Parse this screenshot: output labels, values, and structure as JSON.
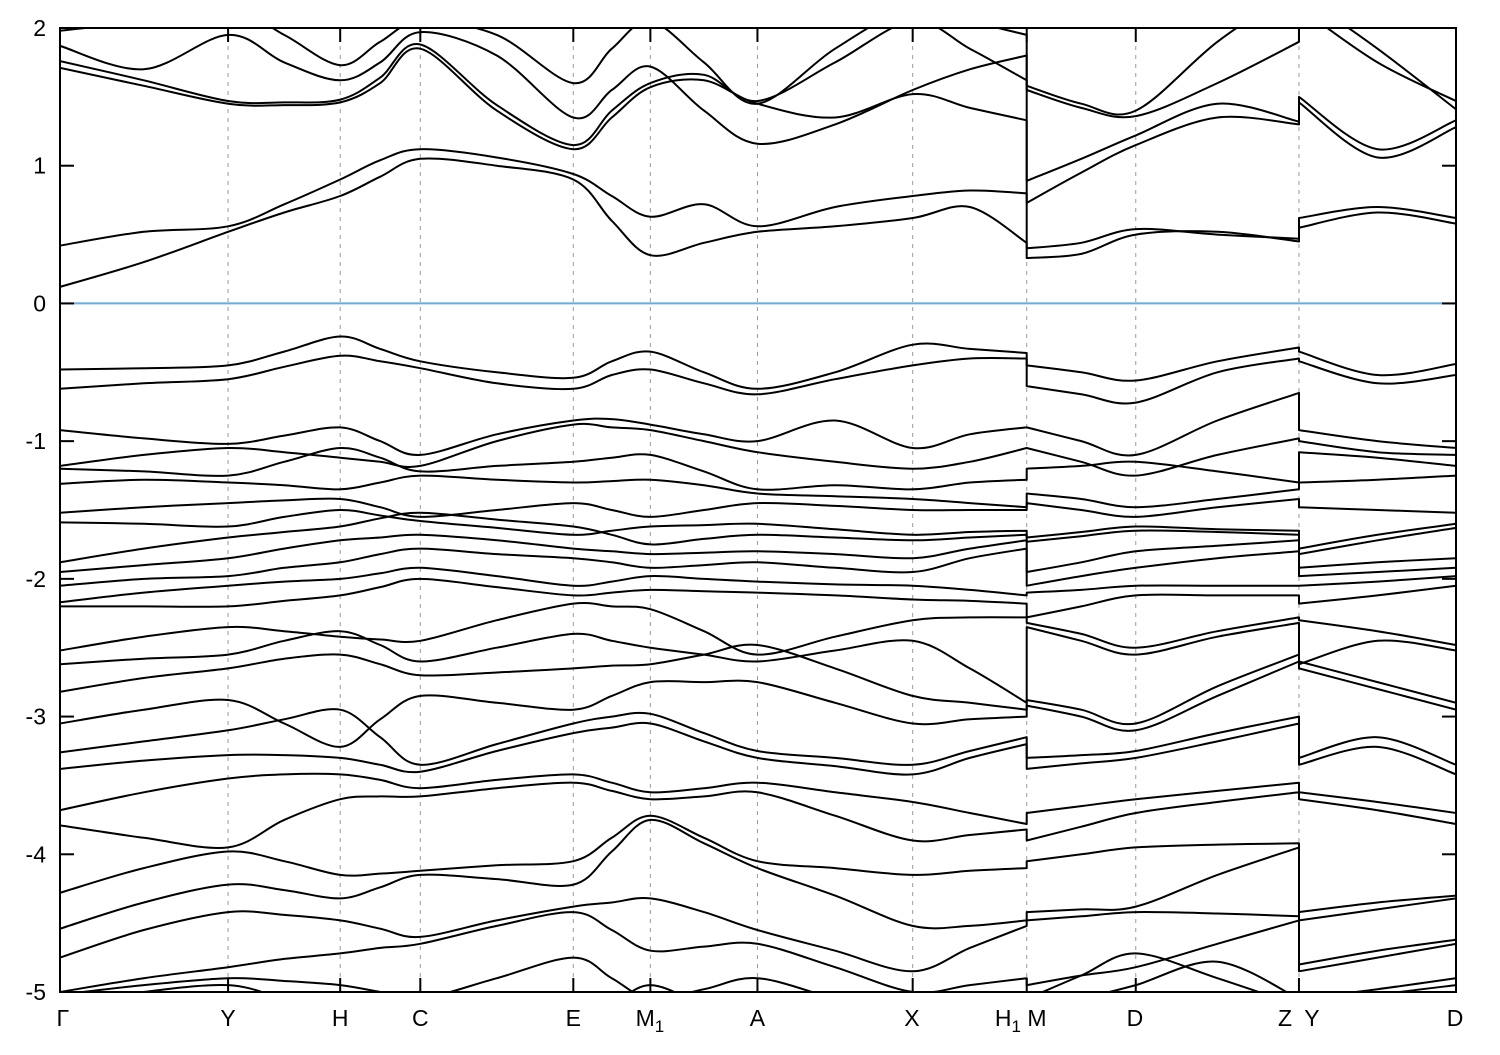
{
  "figure": {
    "kind": "electronic band structure plot",
    "background": "#ffffff"
  },
  "chart_data": {
    "type": "line",
    "title": "",
    "xlabel": "",
    "ylabel": "",
    "ylim": [
      -5,
      2
    ],
    "yticks": [
      2,
      1,
      0,
      -1,
      -2,
      -3,
      -4,
      -5
    ],
    "grid": "vertical-dashed",
    "legend": "none",
    "fermi_level": 0,
    "colors": {
      "band": "#000000",
      "fermi": "#64aede",
      "gridline": "#9a9a9a",
      "frame": "#000000"
    },
    "kpoint_labels": [
      {
        "main": "Γ",
        "sub": "",
        "f": 0.002
      },
      {
        "main": "Y",
        "sub": "",
        "f": 0.1204
      },
      {
        "main": "H",
        "sub": "",
        "f": 0.2007
      },
      {
        "main": "C",
        "sub": "",
        "f": 0.2581
      },
      {
        "main": "E",
        "sub": "",
        "f": 0.3677
      },
      {
        "main": "M",
        "sub": "1",
        "f": 0.4226
      },
      {
        "main": "A",
        "sub": "",
        "f": 0.4996
      },
      {
        "main": "X",
        "sub": "",
        "f": 0.6103
      },
      {
        "main": "H",
        "sub": "1",
        "f": 0.679
      },
      {
        "main": "M",
        "sub": "",
        "f": 0.6998
      },
      {
        "main": "D",
        "sub": "",
        "f": 0.77
      },
      {
        "main": "Z",
        "sub": "",
        "f": 0.8775
      },
      {
        "main": "Y",
        "sub": "",
        "f": 0.8968
      },
      {
        "main": "D",
        "sub": "",
        "f": 0.9993
      }
    ],
    "gridlines_x": [
      0.1204,
      0.2007,
      0.2581,
      0.3677,
      0.4229,
      0.4996,
      0.6108,
      0.6925,
      0.7706,
      0.8875
    ],
    "panel_boundaries": [
      0.6925,
      0.8875
    ],
    "stations_x": [
      0.0,
      0.06,
      0.1204,
      0.1606,
      0.2007,
      0.2294,
      0.2581,
      0.3129,
      0.3677,
      0.3953,
      0.4229,
      0.4613,
      0.4996,
      0.5552,
      0.6108,
      0.6517,
      0.6925,
      0.6925,
      0.7316,
      0.7706,
      0.8291,
      0.8875,
      0.8875,
      0.9438,
      1.0
    ],
    "segments": [
      [
        0,
        16
      ],
      [
        17,
        21
      ],
      [
        22,
        24
      ]
    ],
    "bands": [
      [
        0.12,
        0.3,
        0.52,
        0.66,
        0.78,
        0.92,
        1.05,
        1.0,
        0.9,
        0.6,
        0.35,
        0.44,
        0.52,
        0.56,
        0.62,
        0.7,
        0.44,
        0.33,
        0.36,
        0.5,
        0.52,
        0.45,
        0.55,
        0.66,
        0.58
      ],
      [
        0.42,
        0.52,
        0.56,
        0.72,
        0.9,
        1.04,
        1.12,
        1.06,
        0.94,
        0.78,
        0.63,
        0.72,
        0.56,
        0.7,
        0.78,
        0.82,
        0.8,
        0.4,
        0.44,
        0.54,
        0.5,
        0.47,
        0.62,
        0.7,
        0.62
      ],
      [
        1.71,
        1.58,
        1.45,
        1.44,
        1.46,
        1.6,
        1.85,
        1.4,
        1.12,
        1.35,
        1.57,
        1.62,
        1.45,
        1.35,
        1.52,
        1.42,
        1.33,
        0.73,
        0.95,
        1.15,
        1.35,
        1.3,
        1.46,
        1.06,
        1.28
      ],
      [
        1.76,
        1.62,
        1.47,
        1.46,
        1.48,
        1.64,
        1.88,
        1.44,
        1.15,
        1.4,
        1.6,
        1.66,
        1.47,
        1.75,
        2.05,
        1.85,
        1.62,
        0.89,
        1.05,
        1.22,
        1.45,
        1.32,
        1.5,
        1.12,
        1.33
      ],
      [
        1.87,
        1.7,
        1.95,
        1.75,
        1.62,
        1.75,
        1.97,
        1.8,
        1.35,
        1.55,
        1.72,
        1.4,
        1.16,
        1.3,
        1.55,
        1.7,
        1.8,
        1.55,
        1.42,
        1.36,
        1.6,
        1.9,
        2.15,
        1.75,
        1.47
      ],
      [
        1.98,
        2.05,
        2.15,
        1.95,
        1.73,
        1.9,
        2.05,
        1.95,
        1.6,
        1.85,
        2.05,
        1.75,
        1.45,
        1.85,
        2.15,
        2.05,
        1.95,
        1.58,
        1.45,
        1.4,
        1.9,
        2.3,
        2.25,
        1.85,
        1.41
      ],
      [
        -0.48,
        -0.47,
        -0.45,
        -0.35,
        -0.24,
        -0.33,
        -0.42,
        -0.5,
        -0.54,
        -0.42,
        -0.35,
        -0.5,
        -0.62,
        -0.5,
        -0.3,
        -0.33,
        -0.36,
        -0.45,
        -0.5,
        -0.56,
        -0.42,
        -0.32,
        -0.35,
        -0.52,
        -0.44
      ],
      [
        -0.62,
        -0.58,
        -0.55,
        -0.46,
        -0.38,
        -0.42,
        -0.47,
        -0.58,
        -0.62,
        -0.52,
        -0.48,
        -0.58,
        -0.66,
        -0.55,
        -0.45,
        -0.4,
        -0.4,
        -0.6,
        -0.66,
        -0.72,
        -0.5,
        -0.4,
        -0.42,
        -0.58,
        -0.52
      ],
      [
        -0.92,
        -0.98,
        -1.02,
        -0.96,
        -0.9,
        -1.0,
        -1.1,
        -0.95,
        -0.85,
        -0.84,
        -0.88,
        -0.95,
        -1.0,
        -0.85,
        -1.05,
        -0.95,
        -0.9,
        -0.9,
        -1.0,
        -1.1,
        -0.85,
        -0.65,
        -0.92,
        -1.0,
        -1.05
      ],
      [
        -1.18,
        -1.1,
        -1.05,
        -1.08,
        -1.12,
        -1.15,
        -1.18,
        -1.0,
        -0.88,
        -0.9,
        -0.92,
        -1.0,
        -1.08,
        -1.15,
        -1.2,
        -1.15,
        -1.05,
        -1.05,
        -1.15,
        -1.25,
        -1.1,
        -0.98,
        -1.0,
        -1.08,
        -1.1
      ],
      [
        -1.2,
        -1.22,
        -1.25,
        -1.15,
        -1.05,
        -1.12,
        -1.22,
        -1.18,
        -1.15,
        -1.12,
        -1.1,
        -1.22,
        -1.35,
        -1.32,
        -1.35,
        -1.3,
        -1.28,
        -1.2,
        -1.18,
        -1.15,
        -1.22,
        -1.3,
        -1.08,
        -1.12,
        -1.18
      ],
      [
        -1.31,
        -1.28,
        -1.3,
        -1.32,
        -1.35,
        -1.3,
        -1.25,
        -1.28,
        -1.3,
        -1.29,
        -1.28,
        -1.32,
        -1.38,
        -1.4,
        -1.42,
        -1.45,
        -1.48,
        -1.38,
        -1.42,
        -1.48,
        -1.42,
        -1.35,
        -1.3,
        -1.28,
        -1.25
      ],
      [
        -1.52,
        -1.48,
        -1.45,
        -1.43,
        -1.42,
        -1.48,
        -1.55,
        -1.5,
        -1.45,
        -1.5,
        -1.55,
        -1.5,
        -1.45,
        -1.47,
        -1.5,
        -1.5,
        -1.5,
        -1.45,
        -1.5,
        -1.55,
        -1.48,
        -1.42,
        -1.48,
        -1.5,
        -1.52
      ],
      [
        -1.59,
        -1.6,
        -1.62,
        -1.55,
        -1.5,
        -1.54,
        -1.58,
        -1.63,
        -1.68,
        -1.65,
        -1.62,
        -1.61,
        -1.6,
        -1.64,
        -1.68,
        -1.66,
        -1.65,
        -1.7,
        -1.66,
        -1.62,
        -1.64,
        -1.65,
        -1.78,
        -1.68,
        -1.6
      ],
      [
        -1.88,
        -1.78,
        -1.7,
        -1.66,
        -1.62,
        -1.56,
        -1.52,
        -1.57,
        -1.62,
        -1.68,
        -1.75,
        -1.71,
        -1.68,
        -1.7,
        -1.72,
        -1.7,
        -1.68,
        -1.73,
        -1.69,
        -1.65,
        -1.66,
        -1.68,
        -1.82,
        -1.72,
        -1.63
      ],
      [
        -1.95,
        -1.9,
        -1.85,
        -1.78,
        -1.72,
        -1.7,
        -1.68,
        -1.72,
        -1.78,
        -1.8,
        -1.82,
        -1.81,
        -1.8,
        -1.82,
        -1.85,
        -1.78,
        -1.72,
        -1.95,
        -1.88,
        -1.8,
        -1.76,
        -1.72,
        -1.92,
        -1.88,
        -1.85
      ],
      [
        -2.05,
        -2.0,
        -1.98,
        -1.92,
        -1.88,
        -1.82,
        -1.78,
        -1.82,
        -1.85,
        -1.88,
        -1.92,
        -1.9,
        -1.88,
        -1.92,
        -1.95,
        -1.85,
        -1.78,
        -2.05,
        -1.98,
        -1.92,
        -1.85,
        -1.8,
        -1.98,
        -1.95,
        -1.92
      ],
      [
        -2.17,
        -2.1,
        -2.05,
        -2.02,
        -2.0,
        -1.96,
        -1.92,
        -1.98,
        -2.05,
        -2.02,
        -1.98,
        -2.0,
        -2.02,
        -2.04,
        -2.05,
        -2.08,
        -2.12,
        -2.1,
        -2.08,
        -2.05,
        -2.05,
        -2.05,
        -2.05,
        -2.02,
        -1.98
      ],
      [
        -2.2,
        -2.2,
        -2.2,
        -2.16,
        -2.12,
        -2.06,
        -2.0,
        -2.06,
        -2.12,
        -2.1,
        -2.08,
        -2.09,
        -2.1,
        -2.12,
        -2.15,
        -2.16,
        -2.18,
        -2.28,
        -2.2,
        -2.12,
        -2.12,
        -2.12,
        -2.18,
        -2.12,
        -2.05
      ],
      [
        -2.52,
        -2.42,
        -2.35,
        -2.38,
        -2.42,
        -2.44,
        -2.45,
        -2.3,
        -2.18,
        -2.2,
        -2.22,
        -2.38,
        -2.55,
        -2.42,
        -2.3,
        -2.28,
        -2.28,
        -2.32,
        -2.4,
        -2.5,
        -2.38,
        -2.28,
        -2.3,
        -2.38,
        -2.48
      ],
      [
        -2.62,
        -2.58,
        -2.55,
        -2.45,
        -2.38,
        -2.48,
        -2.6,
        -2.5,
        -2.4,
        -2.45,
        -2.5,
        -2.55,
        -2.6,
        -2.52,
        -2.45,
        -2.65,
        -2.9,
        -2.35,
        -2.45,
        -2.55,
        -2.42,
        -2.32,
        -2.62,
        -2.45,
        -2.52
      ],
      [
        -2.82,
        -2.72,
        -2.65,
        -2.58,
        -2.55,
        -2.62,
        -2.7,
        -2.68,
        -2.65,
        -2.63,
        -2.62,
        -2.55,
        -2.48,
        -2.65,
        -2.85,
        -2.9,
        -2.95,
        -2.88,
        -2.95,
        -3.05,
        -2.78,
        -2.55,
        -2.6,
        -2.75,
        -2.9
      ],
      [
        -3.05,
        -2.95,
        -2.88,
        -3.05,
        -3.22,
        -3.02,
        -2.85,
        -2.9,
        -2.95,
        -2.85,
        -2.75,
        -2.75,
        -2.75,
        -2.9,
        -3.05,
        -3.02,
        -3.0,
        -2.92,
        -3.0,
        -3.1,
        -2.85,
        -2.6,
        -2.65,
        -2.8,
        -2.95
      ],
      [
        -3.26,
        -3.18,
        -3.1,
        -3.02,
        -2.95,
        -3.15,
        -3.35,
        -3.2,
        -3.05,
        -3.0,
        -2.98,
        -3.12,
        -3.25,
        -3.3,
        -3.35,
        -3.25,
        -3.15,
        -3.3,
        -3.28,
        -3.25,
        -3.12,
        -3.0,
        -3.3,
        -3.15,
        -3.35
      ],
      [
        -3.38,
        -3.32,
        -3.28,
        -3.28,
        -3.3,
        -3.35,
        -3.4,
        -3.25,
        -3.12,
        -3.08,
        -3.05,
        -3.18,
        -3.3,
        -3.36,
        -3.42,
        -3.3,
        -3.2,
        -3.38,
        -3.34,
        -3.3,
        -3.18,
        -3.05,
        -3.35,
        -3.22,
        -3.42
      ],
      [
        -3.68,
        -3.55,
        -3.45,
        -3.42,
        -3.42,
        -3.46,
        -3.52,
        -3.46,
        -3.42,
        -3.48,
        -3.55,
        -3.52,
        -3.48,
        -3.55,
        -3.62,
        -3.7,
        -3.78,
        -3.7,
        -3.65,
        -3.6,
        -3.54,
        -3.48,
        -3.55,
        -3.62,
        -3.7
      ],
      [
        -3.79,
        -3.88,
        -3.95,
        -3.75,
        -3.6,
        -3.58,
        -3.58,
        -3.52,
        -3.48,
        -3.54,
        -3.6,
        -3.58,
        -3.55,
        -3.72,
        -3.9,
        -3.86,
        -3.82,
        -3.9,
        -3.8,
        -3.7,
        -3.62,
        -3.55,
        -3.6,
        -3.68,
        -3.78
      ],
      [
        -4.28,
        -4.1,
        -3.98,
        -4.05,
        -4.15,
        -4.14,
        -4.12,
        -4.08,
        -4.05,
        -3.88,
        -3.72,
        -3.88,
        -4.05,
        -4.1,
        -4.15,
        -4.12,
        -4.1,
        -4.05,
        -4.0,
        -3.95,
        -3.93,
        -3.92,
        -4.42,
        -4.35,
        -4.3
      ],
      [
        -4.54,
        -4.35,
        -4.22,
        -4.26,
        -4.32,
        -4.24,
        -4.15,
        -4.18,
        -4.22,
        -3.98,
        -3.75,
        -3.92,
        -4.1,
        -4.3,
        -4.52,
        -4.52,
        -4.48,
        -4.42,
        -4.4,
        -4.38,
        -4.15,
        -3.95,
        -4.48,
        -4.4,
        -4.32
      ],
      [
        -4.75,
        -4.55,
        -4.42,
        -4.44,
        -4.48,
        -4.54,
        -4.6,
        -4.48,
        -4.38,
        -4.35,
        -4.32,
        -4.42,
        -4.55,
        -4.7,
        -4.85,
        -4.68,
        -4.52,
        -4.48,
        -4.45,
        -4.42,
        -4.43,
        -4.45,
        -4.8,
        -4.7,
        -4.62
      ],
      [
        -5.0,
        -4.9,
        -4.82,
        -4.76,
        -4.72,
        -4.68,
        -4.65,
        -4.52,
        -4.42,
        -4.55,
        -4.7,
        -4.67,
        -4.65,
        -4.82,
        -5.0,
        -4.95,
        -4.9,
        -4.95,
        -4.88,
        -4.82,
        -4.65,
        -4.48,
        -4.85,
        -4.75,
        -4.65
      ],
      [
        -5.02,
        -4.95,
        -4.9,
        -4.92,
        -4.95,
        -5.0,
        -5.05,
        -4.9,
        -4.75,
        -4.9,
        -5.05,
        -4.98,
        -4.9,
        -5.05,
        -5.2,
        -5.15,
        -5.1,
        -5.05,
        -4.88,
        -4.72,
        -4.9,
        -5.1,
        -5.05,
        -4.98,
        -4.9
      ],
      [
        -5.1,
        -5.0,
        -4.95,
        -5.05,
        -5.15,
        -5.1,
        -5.05,
        -5.15,
        -5.25,
        -5.1,
        -4.95,
        -5.1,
        -5.25,
        -5.15,
        -5.05,
        -5.15,
        -5.25,
        -5.15,
        -5.05,
        -4.95,
        -4.78,
        -5.05,
        -5.1,
        -5.02,
        -4.95
      ]
    ]
  }
}
